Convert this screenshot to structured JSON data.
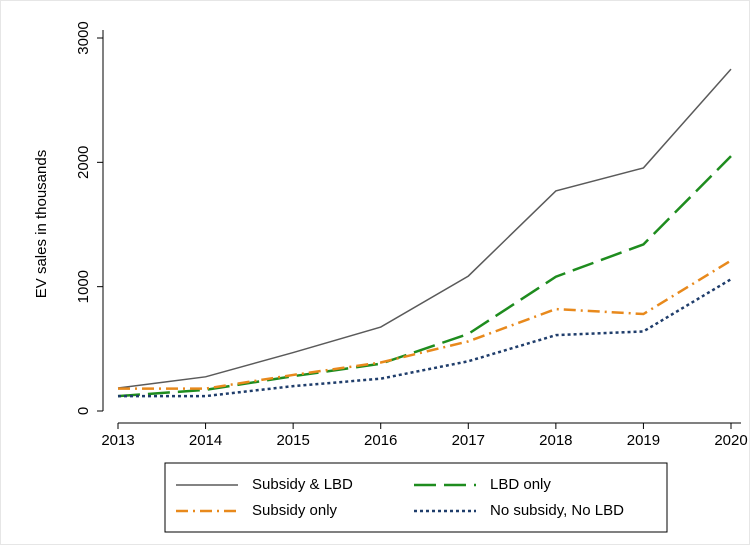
{
  "chart_data": {
    "type": "line",
    "ylabel": "EV sales in thousands",
    "x": [
      2013,
      2014,
      2015,
      2016,
      2017,
      2018,
      2019,
      2020
    ],
    "series": [
      {
        "name": "Subsidy & LBD",
        "color": "#5a5a5a",
        "dash": "solid",
        "values": [
          185,
          275,
          470,
          675,
          1085,
          1770,
          1955,
          2750
        ]
      },
      {
        "name": "LBD only",
        "color": "#1e8c1e",
        "dash": "longdash",
        "values": [
          120,
          170,
          280,
          380,
          620,
          1080,
          1340,
          2050
        ]
      },
      {
        "name": "Subsidy only",
        "color": "#e8891c",
        "dash": "dashdot",
        "values": [
          180,
          180,
          290,
          390,
          560,
          820,
          780,
          1210
        ]
      },
      {
        "name": "No subsidy, No LBD",
        "color": "#1f3d6b",
        "dash": "dot",
        "values": [
          120,
          120,
          200,
          260,
          400,
          610,
          640,
          1060
        ]
      }
    ],
    "xlim": [
      2013,
      2020
    ],
    "xticks": [
      2013,
      2014,
      2015,
      2016,
      2017,
      2018,
      2019,
      2020
    ],
    "ylim": [
      0,
      3000
    ],
    "yticks": [
      0,
      1000,
      2000,
      3000
    ],
    "grid": false,
    "legend": "bottom"
  }
}
